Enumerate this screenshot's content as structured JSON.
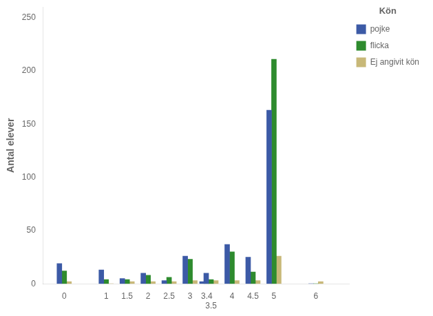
{
  "chart_data": {
    "type": "bar",
    "x": [
      0,
      1,
      1.5,
      2,
      2.5,
      3,
      3.4,
      3.5,
      4,
      4.5,
      5,
      6
    ],
    "series": [
      {
        "name": "pojke",
        "color": "#3C5AA6",
        "values": [
          19,
          13,
          5,
          10,
          3,
          26,
          2,
          10,
          37,
          25,
          163,
          0
        ]
      },
      {
        "name": "flicka",
        "color": "#2E8B2E",
        "values": [
          12,
          4,
          4,
          8,
          6,
          23,
          0,
          4,
          30,
          11,
          211,
          0
        ]
      },
      {
        "name": "Ej angivit kön",
        "color": "#C8B878",
        "values": [
          2,
          0,
          2,
          2,
          2,
          3,
          0,
          3,
          3,
          3,
          26,
          2
        ]
      }
    ],
    "ylabel": "Antal elever",
    "legend_title": "Kön",
    "xlim": [
      -0.5,
      6.8
    ],
    "xticks": [
      0,
      1,
      1.5,
      2,
      2.5,
      3,
      3.4,
      3.5,
      4,
      4.5,
      5,
      6
    ],
    "ylim": [
      0,
      260
    ],
    "yticks": [
      0,
      50,
      100,
      150,
      200,
      250
    ],
    "grid": false,
    "legend": "right"
  }
}
